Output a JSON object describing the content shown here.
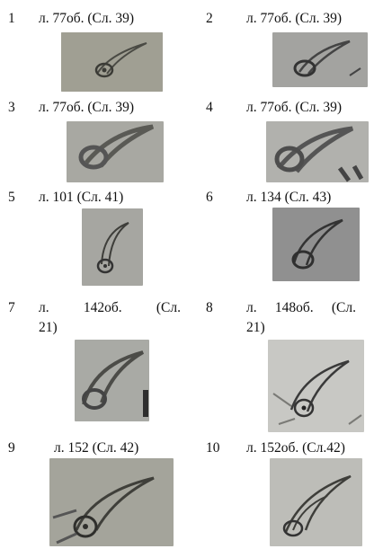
{
  "items": [
    {
      "number": "1",
      "caption": "л. 77об. (Сл. 39)"
    },
    {
      "number": "2",
      "caption": "л. 77об. (Сл. 39)"
    },
    {
      "number": "3",
      "caption": "л. 77об. (Сл. 39)"
    },
    {
      "number": "4",
      "caption": "л. 77об. (Сл. 39)"
    },
    {
      "number": "5",
      "caption": "л. 101 (Сл. 41)"
    },
    {
      "number": "6",
      "caption": "л. 134 (Сл. 43)"
    },
    {
      "number": "7",
      "caption_parts": [
        "л.",
        "142об.",
        "(Сл.",
        "21)"
      ]
    },
    {
      "number": "8",
      "caption_parts": [
        "л.",
        "148об.",
        "(Сл.",
        "21)"
      ]
    },
    {
      "number": "9",
      "caption": "л. 152 (Сл. 42)"
    },
    {
      "number": "10",
      "caption": "л. 152об. (Сл.42)"
    }
  ]
}
